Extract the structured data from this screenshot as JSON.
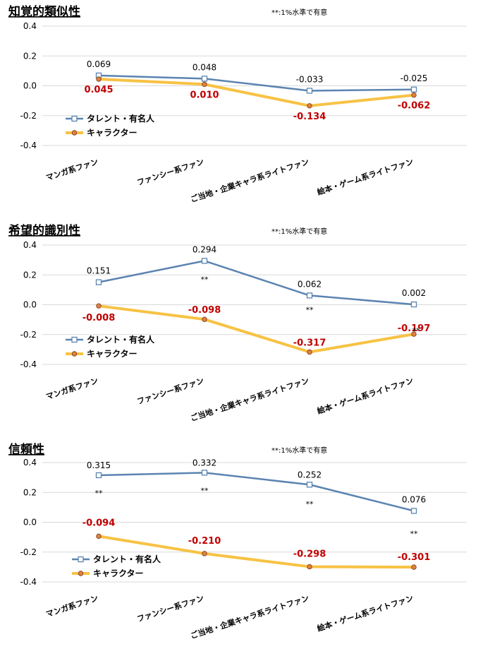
{
  "chart_data": [
    {
      "type": "line",
      "title": "知覚的類似性",
      "note": "**:1%水準で有意",
      "categories": [
        "マンガ系ファン",
        "ファンシー系ファン",
        "ご当地・企業キャラ系ライトファン",
        "絵本・ゲーム系ライトファン"
      ],
      "ylim": [
        -0.4,
        0.4
      ],
      "yticks": [
        "0.4",
        "0.2",
        "0.0",
        "-0.2",
        "-0.4"
      ],
      "series": [
        {
          "name": "タレント・有名人",
          "color": "#5B84B1",
          "values": [
            0.069,
            0.048,
            -0.033,
            -0.025
          ],
          "labels": [
            "0.069",
            "0.048",
            "-0.033",
            "-0.025"
          ]
        },
        {
          "name": "キャラクター",
          "color": "#F7C244",
          "values": [
            0.045,
            0.01,
            -0.134,
            -0.062
          ],
          "labels": [
            "0.045",
            "0.010",
            "-0.134",
            "-0.062"
          ]
        }
      ],
      "significance": []
    },
    {
      "type": "line",
      "title": "希望的識別性",
      "note": "**:1%水準で有意",
      "categories": [
        "マンガ系ファン",
        "ファンシー系ファン",
        "ご当地・企業キャラ系ライトファン",
        "絵本・ゲーム系ライトファン"
      ],
      "ylim": [
        -0.4,
        0.4
      ],
      "yticks": [
        "0.4",
        "0.2",
        "0.0",
        "-0.2",
        "-0.4"
      ],
      "series": [
        {
          "name": "タレント・有名人",
          "color": "#5B84B1",
          "values": [
            0.151,
            0.294,
            0.062,
            0.002
          ],
          "labels": [
            "0.151",
            "0.294",
            "0.062",
            "0.002"
          ]
        },
        {
          "name": "キャラクター",
          "color": "#F7C244",
          "values": [
            -0.008,
            -0.098,
            -0.317,
            -0.197
          ],
          "labels": [
            "-0.008",
            "-0.098",
            "-0.317",
            "-0.197"
          ]
        }
      ],
      "significance": [
        "",
        "**",
        "**",
        "**"
      ]
    },
    {
      "type": "line",
      "title": "信頼性",
      "note": "**:1%水準で有意",
      "categories": [
        "マンガ系ファン",
        "ファンシー系ファン",
        "ご当地・企業キャラ系ライトファン",
        "絵本・ゲーム系ライトファン"
      ],
      "ylim": [
        -0.4,
        0.4
      ],
      "yticks": [
        "0.4",
        "0.2",
        "0.0",
        "-0.2",
        "-0.4"
      ],
      "series": [
        {
          "name": "タレント・有名人",
          "color": "#5B84B1",
          "values": [
            0.315,
            0.332,
            0.252,
            0.076
          ],
          "labels": [
            "0.315",
            "0.332",
            "0.252",
            "0.076"
          ]
        },
        {
          "name": "キャラクター",
          "color": "#F7C244",
          "values": [
            -0.094,
            -0.21,
            -0.298,
            -0.301
          ],
          "labels": [
            "-0.094",
            "-0.210",
            "-0.298",
            "-0.301"
          ]
        }
      ],
      "significance": [
        "**",
        "**",
        "**",
        "**"
      ]
    }
  ]
}
